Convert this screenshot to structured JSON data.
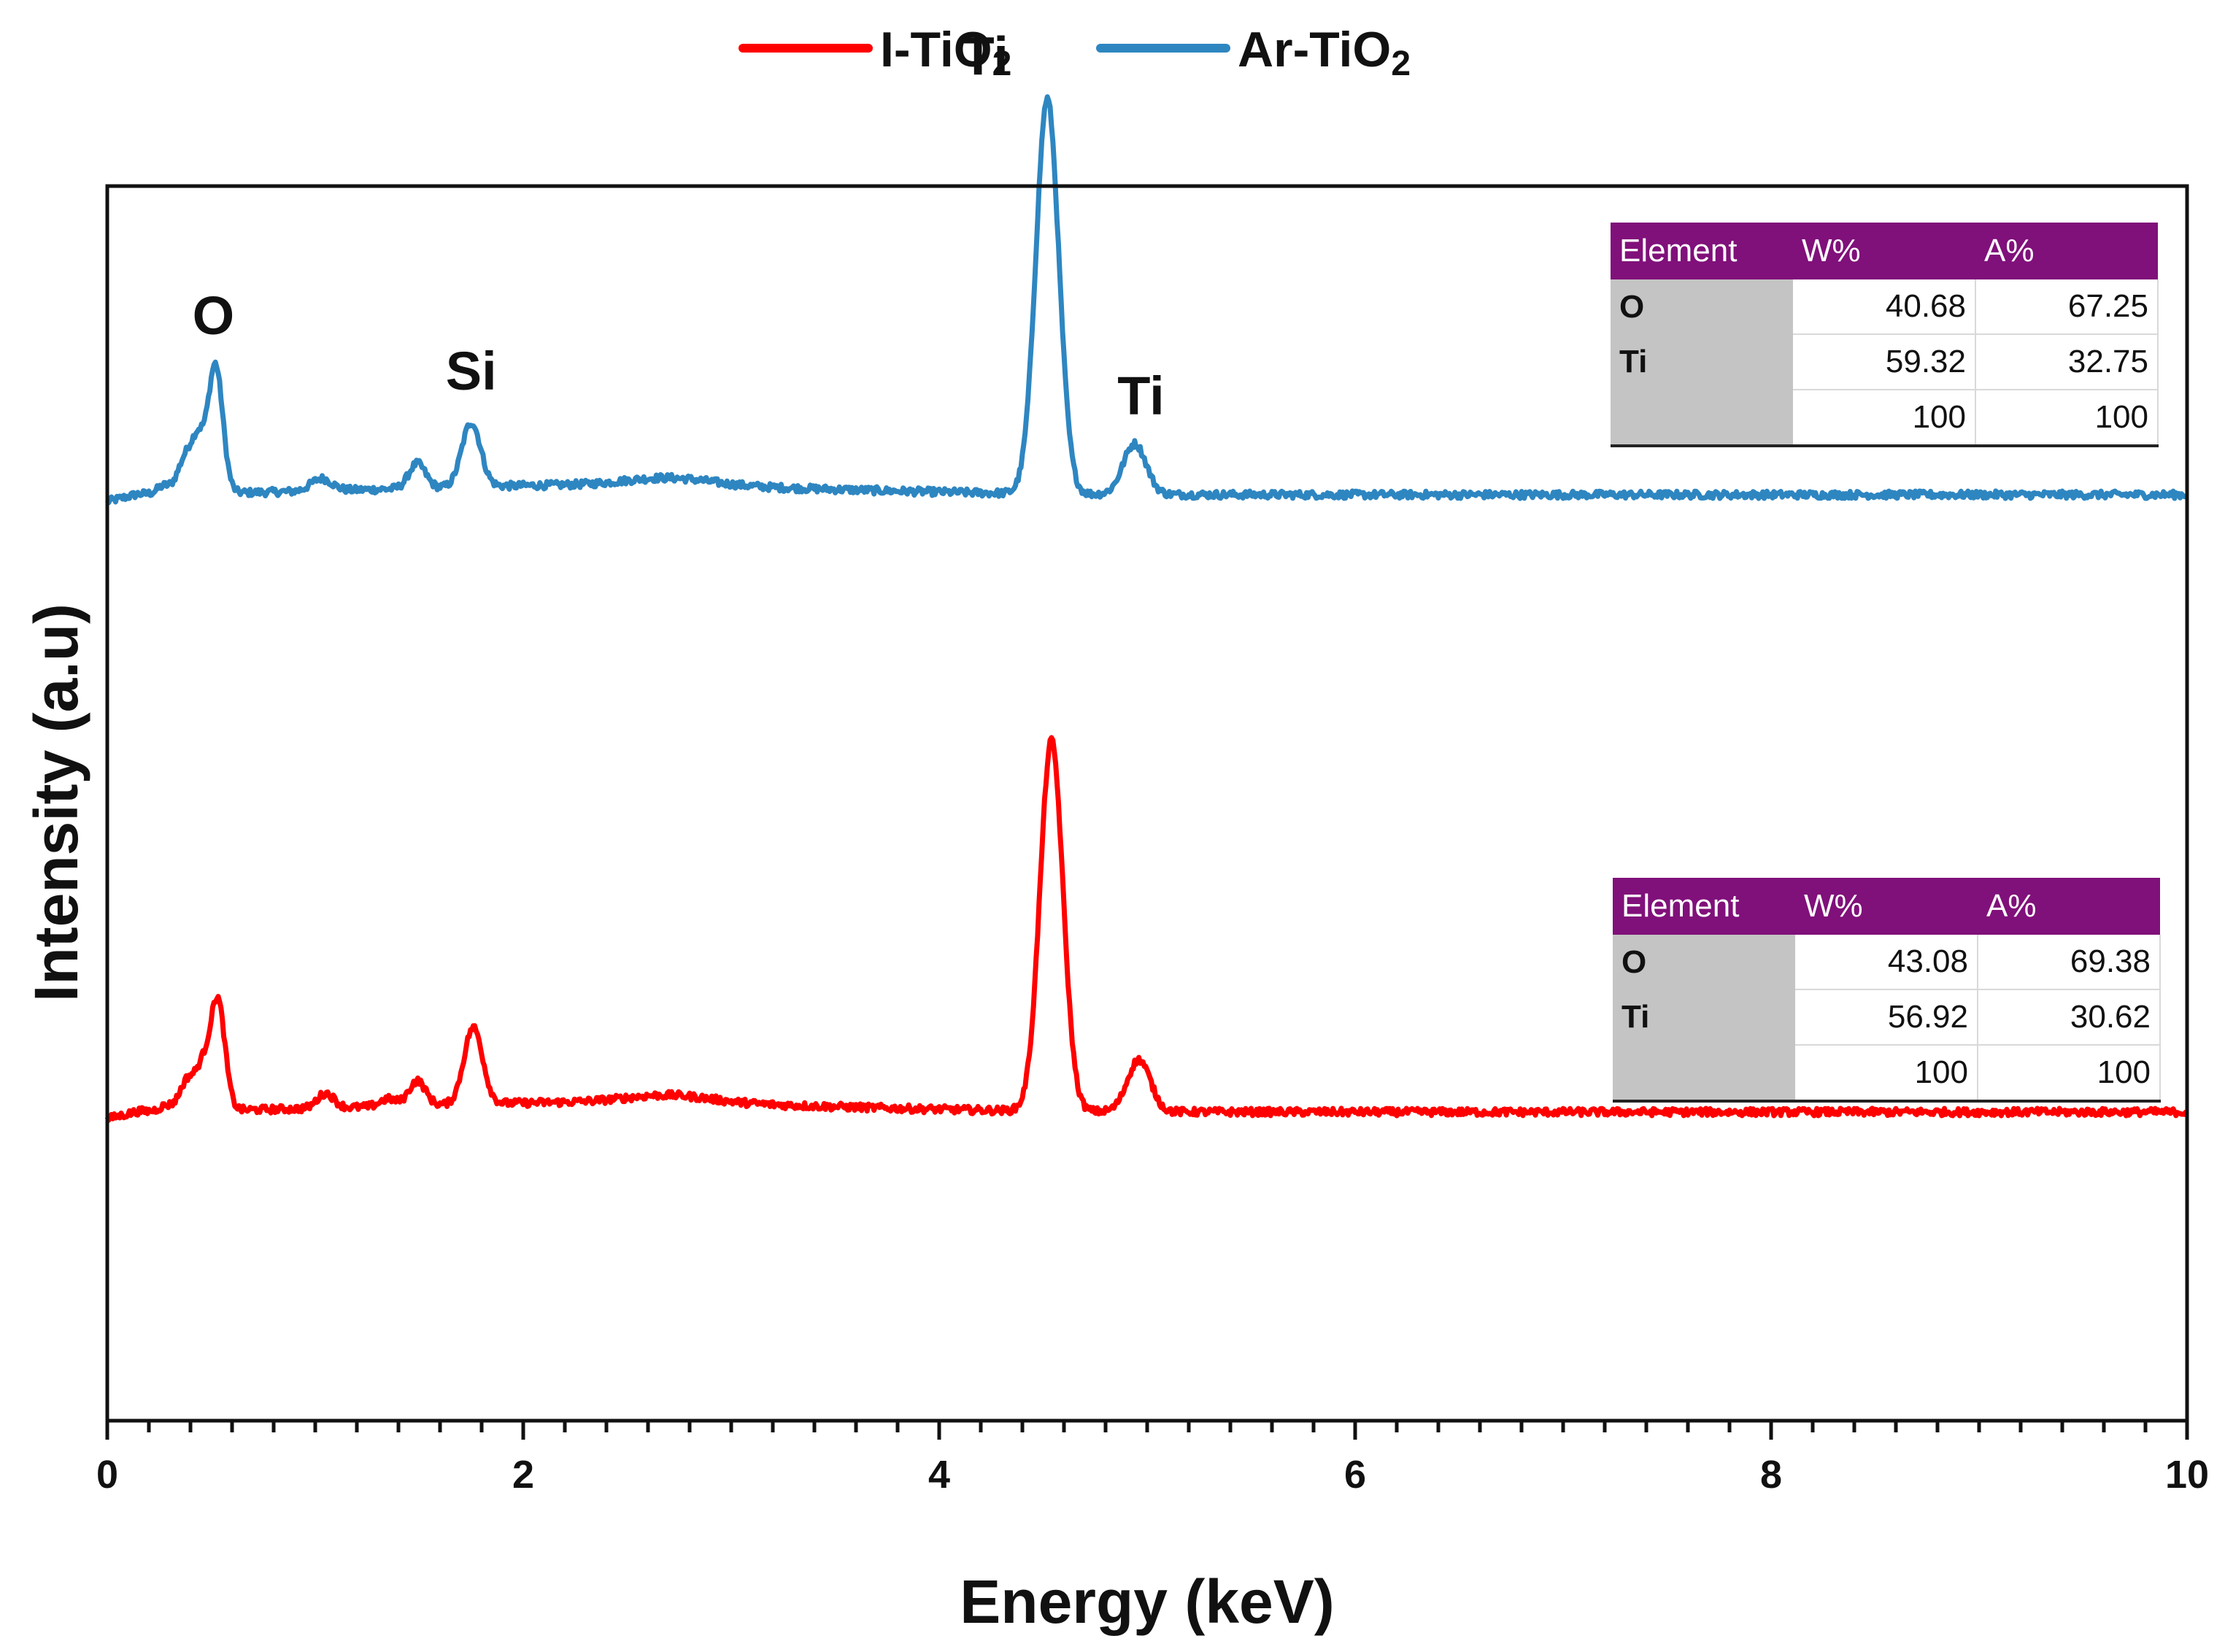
{
  "chart_data": {
    "type": "line",
    "title": "",
    "xlabel": "Energy (keV)",
    "ylabel": "Intensity (a.u)",
    "xlim": [
      0,
      10
    ],
    "x_ticks": [
      0,
      2,
      4,
      6,
      8,
      10
    ],
    "x_tick_labels": [
      "0",
      "2",
      "4",
      "6",
      "8",
      "10"
    ],
    "y_ticks_shown": false,
    "legend_position": "top-center",
    "legend": [
      {
        "name_main": "I-TiO",
        "name_sub": "2",
        "color": "#ff0000"
      },
      {
        "name_main": "Ar-TiO",
        "name_sub": "2",
        "color": "#2e86c1"
      }
    ],
    "series": [
      {
        "name": "Ar-TiO2",
        "color": "#2e86c1",
        "baseline": 0.25,
        "peaks": [
          {
            "x": 0.27,
            "height": 0.006,
            "width": 0.03
          },
          {
            "x": 0.38,
            "height": 0.03,
            "width": 0.04
          },
          {
            "x": 0.44,
            "height": 0.035,
            "width": 0.03
          },
          {
            "x": 0.52,
            "height": 0.104,
            "width": 0.035
          },
          {
            "x": 1.03,
            "height": 0.01,
            "width": 0.05
          },
          {
            "x": 1.49,
            "height": 0.02,
            "width": 0.04
          },
          {
            "x": 1.75,
            "height": 0.052,
            "width": 0.045
          },
          {
            "x": 2.7,
            "height": 0.006,
            "width": 0.2
          },
          {
            "x": 4.52,
            "height": 0.32,
            "width": 0.055
          },
          {
            "x": 4.94,
            "height": 0.041,
            "width": 0.055
          }
        ]
      },
      {
        "name": "I-TiO2",
        "color": "#ff0000",
        "baseline": -0.25,
        "peaks": [
          {
            "x": 0.28,
            "height": 0.004,
            "width": 0.03
          },
          {
            "x": 0.39,
            "height": 0.026,
            "width": 0.04
          },
          {
            "x": 0.46,
            "height": 0.028,
            "width": 0.03
          },
          {
            "x": 0.53,
            "height": 0.09,
            "width": 0.035
          },
          {
            "x": 1.05,
            "height": 0.012,
            "width": 0.04
          },
          {
            "x": 1.35,
            "height": 0.006,
            "width": 0.04
          },
          {
            "x": 1.49,
            "height": 0.02,
            "width": 0.04
          },
          {
            "x": 1.76,
            "height": 0.062,
            "width": 0.045
          },
          {
            "x": 2.7,
            "height": 0.006,
            "width": 0.2
          },
          {
            "x": 4.54,
            "height": 0.3,
            "width": 0.055
          },
          {
            "x": 4.96,
            "height": 0.042,
            "width": 0.055
          }
        ]
      }
    ],
    "annotations": [
      {
        "text": "O",
        "x": 0.51,
        "y": 0.38
      },
      {
        "text": "Si",
        "x": 1.75,
        "y": 0.335
      },
      {
        "text": "Ti",
        "x": 4.22,
        "y": 0.59
      },
      {
        "text": "Ti",
        "x": 4.97,
        "y": 0.315
      }
    ]
  },
  "tables": [
    {
      "series": "Ar-TiO2",
      "headers": [
        "Element",
        "W%",
        "A%"
      ],
      "rows": [
        [
          "O",
          "40.68",
          "67.25"
        ],
        [
          "Ti",
          "59.32",
          "32.75"
        ],
        [
          "",
          "100",
          "100"
        ]
      ]
    },
    {
      "series": "I-TiO2",
      "headers": [
        "Element",
        "W%",
        "A%"
      ],
      "rows": [
        [
          "O",
          "43.08",
          "69.38"
        ],
        [
          "Ti",
          "56.92",
          "30.62"
        ],
        [
          "",
          "100",
          "100"
        ]
      ]
    }
  ]
}
